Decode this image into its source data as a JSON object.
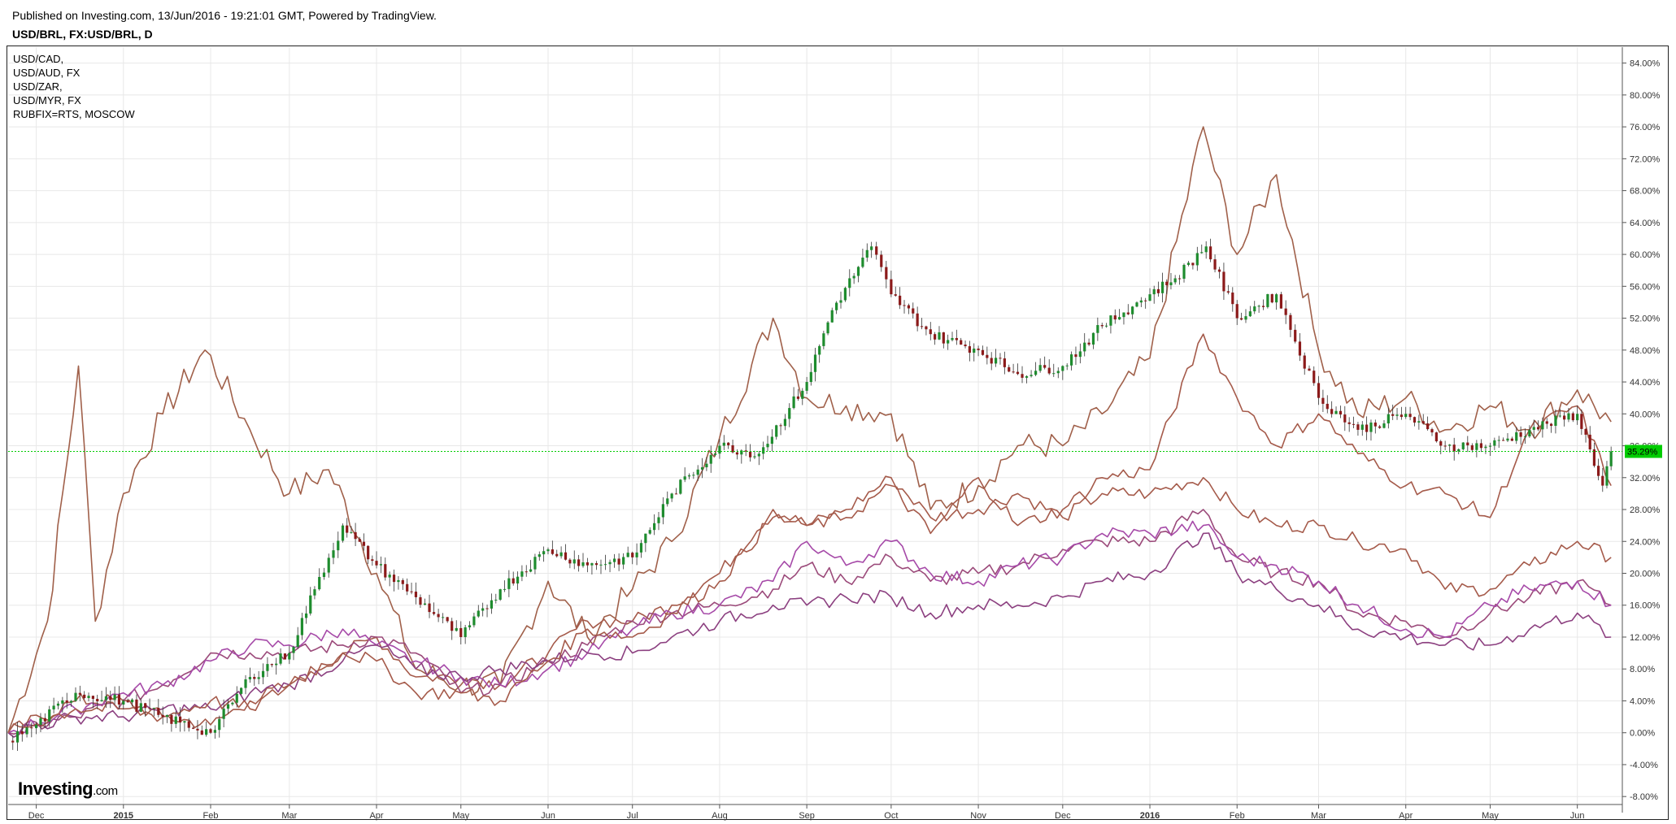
{
  "header": {
    "published": "Published on Investing.com, 13/Jun/2016 - 19:21:01 GMT, Powered by TradingView.",
    "symbol": "USD/BRL, FX:USD/BRL, D"
  },
  "legend": [
    {
      "label": "USD/CAD,"
    },
    {
      "label": "USD/AUD, FX"
    },
    {
      "label": "USD/ZAR,"
    },
    {
      "label": "USD/MYR, FX"
    },
    {
      "label": "RUBFIX=RTS, MOSCOW"
    }
  ],
  "logo": {
    "brand": "Investing",
    "suffix": ".com"
  },
  "colors": {
    "candle_up": "#1e8c2e",
    "candle_down": "#8b1a1a",
    "rub": "#a0604a",
    "zar": "#a55a4a",
    "cad": "#9b4a7a",
    "myr": "#8c4080",
    "aud": "#a64aa8",
    "current_line": "#00cc00",
    "badge": "#00cc00",
    "grid": "#e8e8e8"
  },
  "chart_data": {
    "type": "line",
    "title": "USD/BRL, FX:USD/BRL, D",
    "y_unit": "%",
    "ylim": [
      -9,
      86
    ],
    "yticks": [
      "84.00%",
      "80.00%",
      "76.00%",
      "72.00%",
      "68.00%",
      "64.00%",
      "60.00%",
      "56.00%",
      "52.00%",
      "48.00%",
      "44.00%",
      "40.00%",
      "36.00%",
      "32.00%",
      "28.00%",
      "24.00%",
      "20.00%",
      "16.00%",
      "12.00%",
      "8.00%",
      "4.00%",
      "0.00%",
      "-4.00%",
      "-8.00%"
    ],
    "yticks_values": [
      84,
      80,
      76,
      72,
      68,
      64,
      60,
      56,
      52,
      48,
      44,
      40,
      36,
      32,
      28,
      24,
      20,
      16,
      12,
      8,
      4,
      0,
      -4,
      -8
    ],
    "x_range": [
      "2014-11-21",
      "2016-06-17"
    ],
    "xticks": [
      {
        "label": "Dec",
        "date": "2014-12-01",
        "bold": false
      },
      {
        "label": "2015",
        "date": "2015-01-01",
        "bold": true
      },
      {
        "label": "Feb",
        "date": "2015-02-01",
        "bold": false
      },
      {
        "label": "Mar",
        "date": "2015-03-01",
        "bold": false
      },
      {
        "label": "Apr",
        "date": "2015-04-01",
        "bold": false
      },
      {
        "label": "May",
        "date": "2015-05-01",
        "bold": false
      },
      {
        "label": "Jun",
        "date": "2015-06-01",
        "bold": false
      },
      {
        "label": "Jul",
        "date": "2015-07-01",
        "bold": false
      },
      {
        "label": "Aug",
        "date": "2015-08-01",
        "bold": false
      },
      {
        "label": "Sep",
        "date": "2015-09-01",
        "bold": false
      },
      {
        "label": "Oct",
        "date": "2015-10-01",
        "bold": false
      },
      {
        "label": "Nov",
        "date": "2015-11-01",
        "bold": false
      },
      {
        "label": "Dec",
        "date": "2015-12-01",
        "bold": false
      },
      {
        "label": "2016",
        "date": "2016-01-01",
        "bold": true
      },
      {
        "label": "Feb",
        "date": "2016-02-01",
        "bold": false
      },
      {
        "label": "Mar",
        "date": "2016-03-01",
        "bold": false
      },
      {
        "label": "Apr",
        "date": "2016-04-01",
        "bold": false
      },
      {
        "label": "May",
        "date": "2016-05-01",
        "bold": false
      },
      {
        "label": "Jun",
        "date": "2016-06-01",
        "bold": false
      }
    ],
    "current_value": 35.29,
    "current_label": "35.29%",
    "grid": true,
    "legend_position": "top-left",
    "series": [
      {
        "name": "USD/BRL",
        "type": "candlestick",
        "color_key": "candle_up",
        "x": [
          "2014-11-21",
          "2014-12-01",
          "2014-12-15",
          "2015-01-01",
          "2015-01-15",
          "2015-02-01",
          "2015-02-15",
          "2015-03-01",
          "2015-03-10",
          "2015-03-20",
          "2015-04-01",
          "2015-04-15",
          "2015-05-01",
          "2015-05-15",
          "2015-06-01",
          "2015-06-15",
          "2015-07-01",
          "2015-07-15",
          "2015-08-01",
          "2015-08-15",
          "2015-09-01",
          "2015-09-10",
          "2015-09-24",
          "2015-10-01",
          "2015-10-15",
          "2015-11-01",
          "2015-11-15",
          "2015-12-01",
          "2015-12-15",
          "2016-01-01",
          "2016-01-10",
          "2016-01-21",
          "2016-02-01",
          "2016-02-15",
          "2016-03-01",
          "2016-03-15",
          "2016-04-01",
          "2016-04-15",
          "2016-05-01",
          "2016-05-15",
          "2016-06-01",
          "2016-06-10",
          "2016-06-13"
        ],
        "values": [
          -1,
          1,
          5,
          4,
          2,
          0,
          7,
          10,
          18,
          26,
          21,
          17,
          12,
          18,
          23,
          21,
          22,
          30,
          36,
          35,
          44,
          53,
          61,
          55,
          50,
          48,
          45,
          46,
          51,
          55,
          57,
          61,
          52,
          55,
          42,
          38,
          40,
          36,
          36,
          38,
          40,
          31,
          35.29
        ]
      },
      {
        "name": "RUBFIX=RTS",
        "type": "line",
        "color_key": "rub",
        "x": [
          "2014-11-21",
          "2014-12-05",
          "2014-12-16",
          "2014-12-22",
          "2015-01-01",
          "2015-01-15",
          "2015-01-30",
          "2015-02-15",
          "2015-03-01",
          "2015-03-15",
          "2015-04-01",
          "2015-04-15",
          "2015-05-01",
          "2015-05-15",
          "2015-06-01",
          "2015-06-15",
          "2015-07-01",
          "2015-07-15",
          "2015-08-01",
          "2015-08-20",
          "2015-09-01",
          "2015-09-15",
          "2015-10-01",
          "2015-10-15",
          "2015-11-01",
          "2015-11-15",
          "2015-12-01",
          "2015-12-15",
          "2016-01-01",
          "2016-01-20",
          "2016-02-01",
          "2016-02-15",
          "2016-03-01",
          "2016-03-15",
          "2016-04-01",
          "2016-04-15",
          "2016-05-01",
          "2016-05-15",
          "2016-06-01",
          "2016-06-13"
        ],
        "values": [
          0,
          14,
          46,
          14,
          30,
          40,
          48,
          38,
          30,
          33,
          20,
          8,
          6,
          6,
          19,
          12,
          18,
          24,
          37,
          52,
          42,
          41,
          40,
          28,
          31,
          36,
          36,
          40,
          47,
          76,
          60,
          70,
          48,
          40,
          42,
          38,
          41,
          38,
          43,
          39
        ]
      },
      {
        "name": "USD/ZAR",
        "type": "line",
        "color_key": "zar",
        "x": [
          "2014-11-21",
          "2014-12-15",
          "2015-01-01",
          "2015-01-15",
          "2015-02-01",
          "2015-02-15",
          "2015-03-01",
          "2015-03-20",
          "2015-04-01",
          "2015-04-15",
          "2015-05-01",
          "2015-05-15",
          "2015-06-01",
          "2015-06-15",
          "2015-07-01",
          "2015-07-15",
          "2015-08-01",
          "2015-08-20",
          "2015-09-01",
          "2015-09-15",
          "2015-10-01",
          "2015-10-15",
          "2015-11-01",
          "2015-11-15",
          "2015-12-01",
          "2015-12-15",
          "2016-01-01",
          "2016-01-20",
          "2016-02-01",
          "2016-02-15",
          "2016-03-01",
          "2016-03-15",
          "2016-04-01",
          "2016-04-15",
          "2016-05-01",
          "2016-05-15",
          "2016-06-01",
          "2016-06-13"
        ],
        "values": [
          0,
          4,
          4,
          2,
          1,
          4,
          6,
          10,
          12,
          7,
          7,
          6,
          10,
          14,
          14,
          16,
          20,
          28,
          26,
          28,
          32,
          27,
          28,
          30,
          27,
          30,
          30,
          32,
          28,
          26,
          26,
          24,
          23,
          18,
          18,
          21,
          24,
          22
        ]
      },
      {
        "name": "USD/CAD",
        "type": "line",
        "color_key": "cad",
        "x": [
          "2014-11-21",
          "2014-12-15",
          "2015-01-01",
          "2015-01-15",
          "2015-02-01",
          "2015-02-15",
          "2015-03-01",
          "2015-03-20",
          "2015-04-01",
          "2015-04-15",
          "2015-05-01",
          "2015-05-15",
          "2015-06-01",
          "2015-06-15",
          "2015-07-01",
          "2015-07-15",
          "2015-08-01",
          "2015-08-20",
          "2015-09-01",
          "2015-09-15",
          "2015-10-01",
          "2015-10-15",
          "2015-11-01",
          "2015-11-15",
          "2015-12-01",
          "2015-12-15",
          "2016-01-01",
          "2016-01-20",
          "2016-02-01",
          "2016-02-15",
          "2016-03-01",
          "2016-03-15",
          "2016-04-01",
          "2016-04-15",
          "2016-05-01",
          "2016-05-15",
          "2016-06-01",
          "2016-06-13"
        ],
        "values": [
          0,
          2,
          4,
          6,
          10,
          10,
          10,
          11,
          12,
          10,
          5,
          6,
          9,
          11,
          14,
          15,
          16,
          18,
          21,
          19,
          22,
          19,
          20,
          21,
          23,
          24,
          24,
          28,
          22,
          20,
          19,
          15,
          14,
          12,
          15,
          17,
          19,
          16
        ]
      },
      {
        "name": "USD/AUD",
        "type": "line",
        "color_key": "aud",
        "x": [
          "2014-11-21",
          "2014-12-15",
          "2015-01-01",
          "2015-01-15",
          "2015-02-01",
          "2015-02-15",
          "2015-03-01",
          "2015-03-20",
          "2015-04-01",
          "2015-04-15",
          "2015-05-01",
          "2015-05-15",
          "2015-06-01",
          "2015-06-15",
          "2015-07-01",
          "2015-07-15",
          "2015-08-01",
          "2015-08-20",
          "2015-09-01",
          "2015-09-15",
          "2015-10-01",
          "2015-10-15",
          "2015-11-01",
          "2015-11-15",
          "2015-12-01",
          "2015-12-15",
          "2016-01-01",
          "2016-01-20",
          "2016-02-01",
          "2016-02-15",
          "2016-03-01",
          "2016-03-15",
          "2016-04-01",
          "2016-04-15",
          "2016-05-01",
          "2016-05-15",
          "2016-06-01",
          "2016-06-13"
        ],
        "values": [
          0,
          3,
          5,
          6,
          9,
          11,
          11,
          13,
          11,
          9,
          7,
          6,
          8,
          10,
          13,
          15,
          16,
          19,
          24,
          21,
          24,
          20,
          19,
          21,
          22,
          25,
          25,
          26,
          22,
          21,
          19,
          16,
          13,
          12,
          16,
          18,
          19,
          16
        ]
      },
      {
        "name": "USD/MYR",
        "type": "line",
        "color_key": "myr",
        "x": [
          "2014-11-21",
          "2014-12-15",
          "2015-01-01",
          "2015-01-15",
          "2015-02-01",
          "2015-02-15",
          "2015-03-01",
          "2015-03-20",
          "2015-04-01",
          "2015-04-15",
          "2015-05-01",
          "2015-05-15",
          "2015-06-01",
          "2015-06-15",
          "2015-07-01",
          "2015-07-15",
          "2015-08-01",
          "2015-08-20",
          "2015-09-01",
          "2015-09-15",
          "2015-10-01",
          "2015-10-15",
          "2015-11-01",
          "2015-11-15",
          "2015-12-01",
          "2015-12-15",
          "2016-01-01",
          "2016-01-20",
          "2016-02-01",
          "2016-02-15",
          "2016-03-01",
          "2016-03-15",
          "2016-04-01",
          "2016-04-15",
          "2016-05-01",
          "2016-05-15",
          "2016-06-01",
          "2016-06-13"
        ],
        "values": [
          0,
          2,
          2,
          3,
          3,
          5,
          6,
          9,
          11,
          8,
          7,
          8,
          9,
          10,
          10,
          12,
          14,
          16,
          16,
          17,
          17,
          15,
          16,
          16,
          17,
          19,
          20,
          25,
          20,
          18,
          16,
          13,
          12,
          11,
          11,
          13,
          15,
          12
        ]
      },
      {
        "name": "USD/ZAR (upper)",
        "type": "line",
        "color_key": "zar",
        "x": [
          "2014-11-21",
          "2014-12-15",
          "2015-01-01",
          "2015-01-15",
          "2015-02-01",
          "2015-02-15",
          "2015-03-01",
          "2015-03-20",
          "2015-04-01",
          "2015-04-15",
          "2015-05-01",
          "2015-05-15",
          "2015-06-01",
          "2015-06-15",
          "2015-07-01",
          "2015-07-15",
          "2015-08-01",
          "2015-08-20",
          "2015-09-01",
          "2015-09-15",
          "2015-10-01",
          "2015-10-15",
          "2015-11-01",
          "2015-11-15",
          "2015-12-01",
          "2015-12-15",
          "2016-01-01",
          "2016-01-20",
          "2016-02-01",
          "2016-02-15",
          "2016-03-01",
          "2016-03-15",
          "2016-04-01",
          "2016-04-15",
          "2016-05-01",
          "2016-05-15",
          "2016-06-01",
          "2016-06-13"
        ],
        "values": [
          0,
          3,
          3,
          2,
          4,
          3,
          6,
          10,
          9,
          5,
          5,
          4,
          9,
          13,
          12,
          15,
          19,
          27,
          26,
          27,
          31,
          25,
          32,
          26,
          28,
          32,
          33,
          50,
          42,
          36,
          40,
          35,
          31,
          30,
          27,
          38,
          41,
          31
        ]
      }
    ]
  }
}
